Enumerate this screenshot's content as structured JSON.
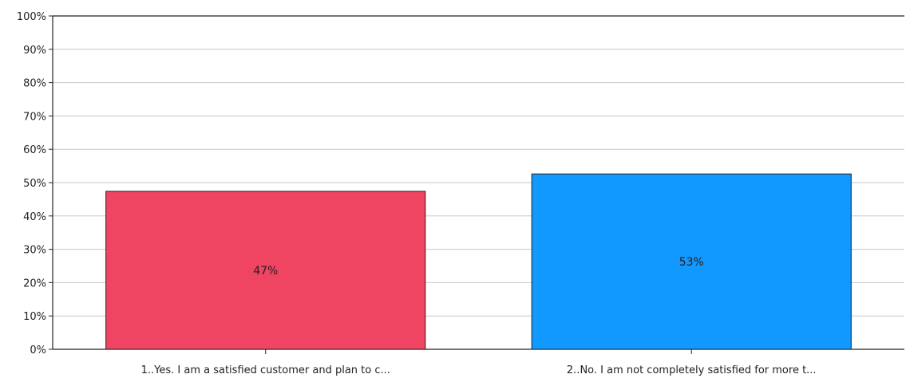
{
  "chart_data": {
    "type": "bar",
    "categories": [
      "1..Yes. I am a satisfied customer and plan to c...",
      "2..No. I am not completely satisfied for more t..."
    ],
    "values": [
      47.4,
      52.6
    ],
    "data_labels": [
      "47%",
      "53%"
    ],
    "colors": [
      "#f04463",
      "#1199ff"
    ],
    "ylim": [
      0,
      100
    ],
    "yticks": [
      0,
      10,
      20,
      30,
      40,
      50,
      60,
      70,
      80,
      90,
      100
    ],
    "ytick_labels": [
      "0%",
      "10%",
      "20%",
      "30%",
      "40%",
      "50%",
      "60%",
      "70%",
      "80%",
      "90%",
      "100%"
    ],
    "grid": true,
    "legend": "none"
  }
}
